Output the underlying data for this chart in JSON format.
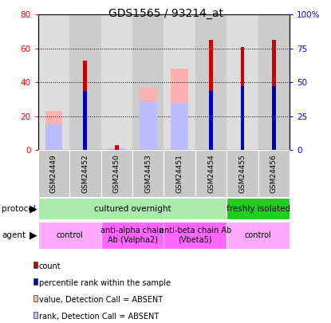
{
  "title": "GDS1565 / 93214_at",
  "samples": [
    "GSM24449",
    "GSM24452",
    "GSM24450",
    "GSM24453",
    "GSM24451",
    "GSM24454",
    "GSM24455",
    "GSM24456"
  ],
  "red_values": [
    0,
    53,
    3,
    0,
    0,
    65,
    61,
    65
  ],
  "pink_values": [
    23,
    0,
    0,
    37,
    48,
    0,
    0,
    0
  ],
  "blue_values": [
    0,
    35,
    0,
    0,
    0,
    35,
    38,
    38
  ],
  "light_blue_values": [
    15,
    0,
    1,
    29,
    28,
    0,
    0,
    0
  ],
  "ylim_left": [
    0,
    80
  ],
  "ylim_right": [
    0,
    100
  ],
  "yticks_left": [
    0,
    20,
    40,
    60,
    80
  ],
  "yticks_right": [
    0,
    25,
    50,
    75,
    100
  ],
  "ytick_labels_right": [
    "0",
    "25",
    "50",
    "75",
    "100%"
  ],
  "protocol_groups": [
    {
      "label": "cultured overnight",
      "start": 0,
      "end": 6,
      "color": "#AAEAAA"
    },
    {
      "label": "freshly isolated",
      "start": 6,
      "end": 8,
      "color": "#22CC22"
    }
  ],
  "agent_groups": [
    {
      "label": "control",
      "start": 0,
      "end": 2,
      "color": "#FFAAFF"
    },
    {
      "label": "anti-alpha chain\nAb (Valpha2)",
      "start": 2,
      "end": 4,
      "color": "#FF66FF"
    },
    {
      "label": "anti-beta chain Ab\n(Vbeta5)",
      "start": 4,
      "end": 6,
      "color": "#FF66FF"
    },
    {
      "label": "control",
      "start": 6,
      "end": 8,
      "color": "#FFAAFF"
    }
  ],
  "legend_items": [
    {
      "label": "count",
      "color": "#CC0000"
    },
    {
      "label": "percentile rank within the sample",
      "color": "#0000BB"
    },
    {
      "label": "value, Detection Call = ABSENT",
      "color": "#FFB0B0"
    },
    {
      "label": "rank, Detection Call = ABSENT",
      "color": "#BBBBFF"
    }
  ],
  "red_color": "#CC0000",
  "pink_color": "#FFB0B0",
  "blue_color": "#0000BB",
  "light_blue_color": "#BBBBFF",
  "wide_bar_width": 0.55,
  "narrow_bar_width": 0.12,
  "chart_bg": "#FFFFFF",
  "col_bg_even": "#DDDDDD",
  "col_bg_odd": "#CCCCCC"
}
